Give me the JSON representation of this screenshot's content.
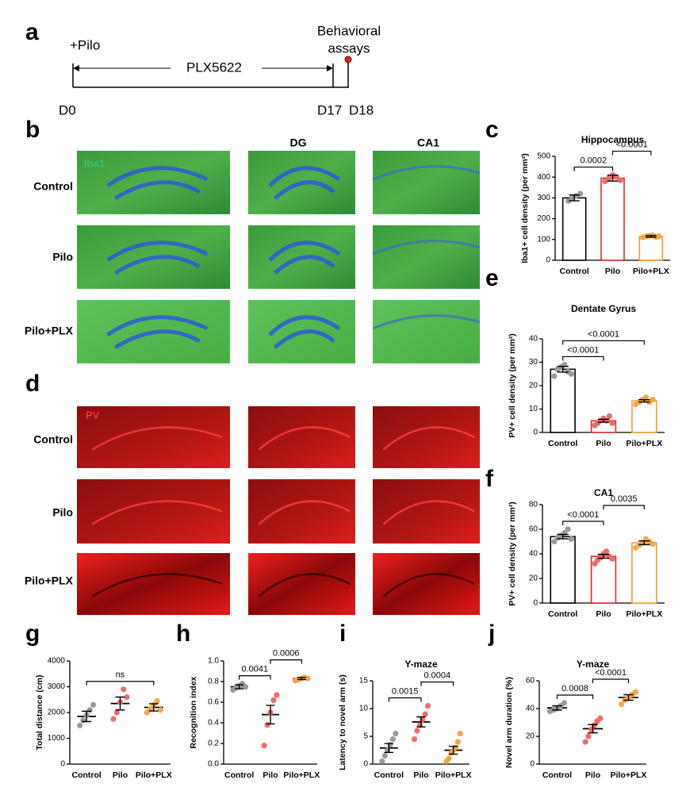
{
  "panel_labels": [
    "a",
    "b",
    "c",
    "d",
    "e",
    "f",
    "g",
    "h",
    "i",
    "j"
  ],
  "timeline": {
    "start_label": "+Pilo",
    "drug": "PLX5622",
    "assay_line1": "Behavioral",
    "assay_line2": "assays",
    "days": [
      "D0",
      "D17",
      "D18"
    ]
  },
  "images": {
    "stain_b": "Iba1",
    "stain_d": "PV",
    "columns": [
      "DG",
      "CA1"
    ],
    "rows": [
      "Control",
      "Pilo",
      "Pilo+PLX"
    ]
  },
  "chart_data": [
    {
      "type": "bar",
      "title": "Hippocampus",
      "y_label": "Iba1+ cell density (per mm²)",
      "categories": [
        "Control",
        "Pilo",
        "Pilo+PLX"
      ],
      "values": [
        300,
        395,
        115
      ],
      "errors": [
        14,
        14,
        4
      ],
      "points": [
        [
          285,
          300,
          310,
          320
        ],
        [
          380,
          395,
          410,
          400,
          385
        ],
        [
          110,
          115,
          118,
          120,
          112,
          116
        ]
      ],
      "colors": [
        "#9a9a9a",
        "#f06a6a",
        "#f5a64a"
      ],
      "bar_colors": [
        "#000000",
        "#e0282e",
        "#f59a30"
      ],
      "ylim": [
        0,
        500
      ],
      "yticks": [
        0,
        100,
        200,
        300,
        400,
        500
      ],
      "annotations": [
        {
          "label": "0.0002",
          "pair": [
            "Control",
            "Pilo"
          ]
        },
        {
          "label": "<0.0001",
          "pair": [
            "Pilo",
            "Pilo+PLX"
          ]
        }
      ]
    },
    {
      "type": "bar",
      "title": "Dentate Gyrus",
      "y_label": "PV+ cell density (per mm²)",
      "categories": [
        "Control",
        "Pilo",
        "Pilo+PLX"
      ],
      "values": [
        27,
        5,
        13.5
      ],
      "errors": [
        1.2,
        0.6,
        0.5
      ],
      "points": [
        [
          24,
          27,
          28,
          29,
          26,
          25
        ],
        [
          3,
          4,
          5,
          6,
          5,
          7,
          4
        ],
        [
          12,
          13,
          14,
          15,
          13,
          14
        ]
      ],
      "colors": [
        "#9a9a9a",
        "#f06a6a",
        "#f5a64a"
      ],
      "bar_colors": [
        "#000000",
        "#e0282e",
        "#f59a30"
      ],
      "ylim": [
        0,
        40
      ],
      "yticks": [
        0,
        10,
        20,
        30,
        40
      ],
      "annotations": [
        {
          "label": "<0.0001",
          "pair": [
            "Control",
            "Pilo"
          ]
        },
        {
          "label": "<0.0001",
          "pair": [
            "Control",
            "Pilo+PLX"
          ]
        }
      ]
    },
    {
      "type": "bar",
      "title": "CA1",
      "y_label": "PV+ cell density (per mm²)",
      "categories": [
        "Control",
        "Pilo",
        "Pilo+PLX"
      ],
      "values": [
        54,
        38,
        49
      ],
      "errors": [
        1.8,
        1.6,
        1.5
      ],
      "points": [
        [
          50,
          53,
          55,
          57,
          60,
          52
        ],
        [
          32,
          35,
          37,
          40,
          42,
          38,
          36
        ],
        [
          45,
          47,
          49,
          52,
          50,
          48
        ]
      ],
      "colors": [
        "#9a9a9a",
        "#f06a6a",
        "#f5a64a"
      ],
      "bar_colors": [
        "#000000",
        "#e0282e",
        "#f59a30"
      ],
      "ylim": [
        0,
        80
      ],
      "yticks": [
        0,
        20,
        40,
        60,
        80
      ],
      "annotations": [
        {
          "label": "<0.0001",
          "pair": [
            "Control",
            "Pilo"
          ]
        },
        {
          "label": "0.0035",
          "pair": [
            "Pilo",
            "Pilo+PLX"
          ]
        }
      ]
    },
    {
      "type": "dot",
      "y_label": "Total distance (cm)",
      "categories": [
        "Control",
        "Pilo",
        "Pilo+PLX"
      ],
      "values": [
        1850,
        2350,
        2200
      ],
      "errors": [
        200,
        250,
        140
      ],
      "points": [
        [
          1500,
          1700,
          1900,
          2100,
          2300
        ],
        [
          1750,
          2000,
          2400,
          2900,
          2600
        ],
        [
          2000,
          2150,
          2300,
          2450,
          2100
        ]
      ],
      "colors": [
        "#9a9a9a",
        "#f06a6a",
        "#f5a64a"
      ],
      "ylim": [
        0,
        4000
      ],
      "yticks": [
        0,
        1000,
        2000,
        3000,
        4000
      ],
      "annotations": [
        {
          "label": "ns",
          "pair": [
            "Control",
            "Pilo+PLX"
          ]
        }
      ]
    },
    {
      "type": "dot",
      "y_label": "Recognition index",
      "categories": [
        "Control",
        "Pilo",
        "Pilo+PLX"
      ],
      "values": [
        0.75,
        0.48,
        0.83
      ],
      "errors": [
        0.02,
        0.09,
        0.01
      ],
      "points": [
        [
          0.72,
          0.74,
          0.76,
          0.78,
          0.75
        ],
        [
          0.18,
          0.38,
          0.5,
          0.62,
          0.67
        ],
        [
          0.81,
          0.82,
          0.83,
          0.84,
          0.83
        ]
      ],
      "colors": [
        "#9a9a9a",
        "#f06a6a",
        "#f5a64a"
      ],
      "ylim": [
        0,
        1
      ],
      "yticks": [
        {
          "value": 0,
          "label": "0.0"
        },
        0.2,
        0.4,
        0.6,
        0.8,
        {
          "value": 1,
          "label": "1.0"
        }
      ],
      "annotations": [
        {
          "label": "0.0041",
          "pair": [
            "Control",
            "Pilo"
          ]
        },
        {
          "label": "0.0006",
          "pair": [
            "Pilo",
            "Pilo+PLX"
          ]
        }
      ]
    },
    {
      "type": "dot",
      "title": "Y-maze",
      "y_label": "Latency to novel arm (s)",
      "categories": [
        "Control",
        "Pilo",
        "Pilo+PLX"
      ],
      "values": [
        2.9,
        7.6,
        2.5
      ],
      "errors": [
        0.8,
        0.9,
        0.7
      ],
      "points": [
        [
          0.5,
          1.5,
          2.5,
          3.5,
          4.5,
          5.5
        ],
        [
          4.5,
          6,
          7,
          8,
          9,
          10.5
        ],
        [
          0.5,
          1,
          2,
          2.5,
          3,
          4,
          5.5
        ]
      ],
      "colors": [
        "#9a9a9a",
        "#f06a6a",
        "#f5a64a"
      ],
      "ylim": [
        0,
        15
      ],
      "yticks": [
        0,
        5,
        10,
        15
      ],
      "annotations": [
        {
          "label": "0.0015",
          "pair": [
            "Control",
            "Pilo"
          ]
        },
        {
          "label": "0.0004",
          "pair": [
            "Pilo",
            "Pilo+PLX"
          ]
        }
      ]
    },
    {
      "type": "dot",
      "title": "Y-maze",
      "y_label": "Novel arm duration (%)",
      "categories": [
        "Control",
        "Pilo",
        "Pilo+PLX"
      ],
      "values": [
        40.5,
        25.5,
        48
      ],
      "errors": [
        1.5,
        3,
        2
      ],
      "points": [
        [
          38,
          39,
          40,
          42,
          44
        ],
        [
          16,
          20,
          25,
          28,
          31,
          33
        ],
        [
          43,
          46,
          48,
          50,
          52
        ]
      ],
      "colors": [
        "#9a9a9a",
        "#f06a6a",
        "#f5a64a"
      ],
      "ylim": [
        0,
        60
      ],
      "yticks": [
        0,
        20,
        40,
        60
      ],
      "annotations": [
        {
          "label": "0.0008",
          "pair": [
            "Control",
            "Pilo"
          ]
        },
        {
          "label": "<0.0001",
          "pair": [
            "Pilo",
            "Pilo+PLX"
          ]
        }
      ]
    }
  ]
}
